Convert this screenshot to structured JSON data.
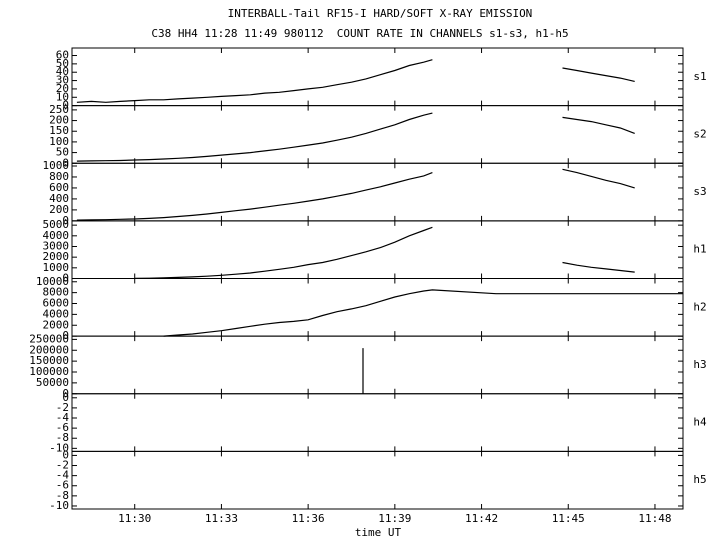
{
  "chart_data": [
    {
      "type": "line",
      "title": "INTERBALL-Tail RF15-I HARD/SOFT X-RAY EMISSION",
      "subtitle": "C38 HH4 11:28 11:49 980112  COUNT RATE IN CHANNELS s1-s3, h1-h5",
      "label": "s1",
      "color": "#000000",
      "x": [
        28,
        28.5,
        29,
        29.5,
        30,
        30.5,
        31,
        31.5,
        32,
        32.5,
        33,
        33.5,
        34,
        34.5,
        35,
        35.5,
        36,
        36.5,
        37,
        37.5,
        38,
        38.5,
        39,
        39.5,
        40,
        40.3,
        42.5,
        44.8,
        45.3,
        45.8,
        46.3,
        46.8,
        47.3
      ],
      "values": [
        4,
        5,
        4,
        5,
        6,
        7,
        7,
        8,
        9,
        10,
        11,
        12,
        13,
        15,
        16,
        18,
        20,
        22,
        25,
        28,
        32,
        37,
        42,
        48,
        52,
        55,
        null,
        45,
        42,
        39,
        36,
        33,
        29
      ],
      "xlim": [
        27.83,
        48.97
      ],
      "ylim": [
        0,
        69
      ],
      "yticks": [
        0,
        10,
        20,
        30,
        40,
        50,
        60
      ]
    },
    {
      "type": "line",
      "label": "s2",
      "color": "#000000",
      "x": [
        28,
        28.5,
        29,
        29.5,
        30,
        30.5,
        31,
        31.5,
        32,
        32.5,
        33,
        33.5,
        34,
        34.5,
        35,
        35.5,
        36,
        36.5,
        37,
        37.5,
        38,
        38.5,
        39,
        39.5,
        40,
        40.3,
        42.5,
        44.8,
        45.3,
        45.8,
        46.3,
        46.8,
        47.3
      ],
      "values": [
        10,
        11,
        12,
        13,
        15,
        17,
        20,
        23,
        27,
        32,
        38,
        44,
        50,
        58,
        66,
        75,
        85,
        95,
        108,
        122,
        140,
        160,
        180,
        205,
        225,
        235,
        null,
        215,
        205,
        195,
        180,
        165,
        140
      ],
      "xlim": [
        27.83,
        48.97
      ],
      "ylim": [
        0,
        270
      ],
      "yticks": [
        0,
        50,
        100,
        150,
        200,
        250
      ]
    },
    {
      "type": "line",
      "label": "s3",
      "color": "#000000",
      "x": [
        28,
        28.5,
        29,
        29.5,
        30,
        30.5,
        31,
        31.5,
        32,
        32.5,
        33,
        33.5,
        34,
        34.5,
        35,
        35.5,
        36,
        36.5,
        37,
        37.5,
        38,
        38.5,
        39,
        39.5,
        40,
        40.3,
        42.5,
        44.8,
        45.3,
        45.8,
        46.3,
        46.8,
        47.3
      ],
      "values": [
        15,
        18,
        22,
        28,
        35,
        45,
        60,
        80,
        100,
        125,
        155,
        185,
        215,
        250,
        285,
        320,
        360,
        400,
        450,
        500,
        560,
        620,
        690,
        760,
        820,
        880,
        null,
        940,
        880,
        810,
        740,
        680,
        600
      ],
      "xlim": [
        27.83,
        48.97
      ],
      "ylim": [
        0,
        1050
      ],
      "yticks": [
        0,
        200,
        400,
        600,
        800,
        1000
      ]
    },
    {
      "type": "line",
      "label": "h1",
      "color": "#000000",
      "x": [
        28,
        28.5,
        29,
        29.5,
        30,
        30.5,
        31,
        31.5,
        32,
        32.5,
        33,
        33.5,
        34,
        34.5,
        35,
        35.5,
        36,
        36.5,
        37,
        37.5,
        38,
        38.5,
        39,
        39.5,
        40,
        40.3,
        42.5,
        44.8,
        45.3,
        45.8,
        46.3,
        46.8,
        47.3
      ],
      "values": [
        null,
        null,
        null,
        null,
        10,
        30,
        60,
        100,
        150,
        220,
        300,
        400,
        520,
        680,
        860,
        1050,
        1300,
        1500,
        1800,
        2150,
        2500,
        2900,
        3400,
        4000,
        4500,
        4800,
        null,
        1500,
        1250,
        1050,
        900,
        750,
        600
      ],
      "xlim": [
        27.83,
        48.97
      ],
      "ylim": [
        0,
        5400
      ],
      "yticks": [
        0,
        1000,
        2000,
        3000,
        4000,
        5000
      ]
    },
    {
      "type": "line",
      "label": "h2",
      "color": "#000000",
      "x": [
        28,
        28.5,
        29,
        29.5,
        30,
        30.5,
        31,
        31.5,
        32,
        32.5,
        33,
        33.5,
        34,
        34.5,
        35,
        35.5,
        36,
        36.5,
        37,
        37.5,
        38,
        38.5,
        39,
        39.5,
        40,
        40.3,
        42.5,
        44.8,
        45.3,
        45.8,
        46.3,
        46.8,
        47.3,
        48.97
      ],
      "values": [
        null,
        null,
        null,
        null,
        null,
        null,
        0,
        200,
        400,
        700,
        1000,
        1400,
        1800,
        2200,
        2500,
        2700,
        3000,
        3800,
        4500,
        5000,
        5600,
        6400,
        7200,
        7800,
        8300,
        8500,
        7800,
        7800,
        7800,
        7800,
        7800,
        7800,
        7800,
        7800
      ],
      "xlim": [
        27.83,
        48.97
      ],
      "ylim": [
        0,
        10600
      ],
      "yticks": [
        0,
        2000,
        4000,
        6000,
        8000,
        10000
      ]
    },
    {
      "type": "line",
      "label": "h3",
      "color": "#000000",
      "x": [
        37.9,
        37.9,
        37.9
      ],
      "values": [
        0,
        210000,
        0
      ],
      "xlim": [
        27.83,
        48.97
      ],
      "ylim": [
        0,
        265000
      ],
      "yticks": [
        0,
        50000,
        100000,
        150000,
        200000,
        250000
      ]
    },
    {
      "type": "line",
      "label": "h4",
      "xlim": [
        27.83,
        48.97
      ],
      "ylim": [
        -10.6,
        0.8
      ],
      "yticks": [
        -10,
        -8,
        -6,
        -4,
        -2,
        0
      ]
    },
    {
      "type": "line",
      "label": "h5",
      "xlabel": "time UT",
      "xlim": [
        27.83,
        48.97
      ],
      "ylim": [
        -10.6,
        0.8
      ],
      "yticks": [
        -10,
        -8,
        -6,
        -4,
        -2,
        0
      ],
      "xticks": [
        {
          "value": 30,
          "label": "11:30"
        },
        {
          "value": 33,
          "label": "11:33"
        },
        {
          "value": 36,
          "label": "11:36"
        },
        {
          "value": 39,
          "label": "11:39"
        },
        {
          "value": 42,
          "label": "11:42"
        },
        {
          "value": 45,
          "label": "11:45"
        },
        {
          "value": 48,
          "label": "11:48"
        }
      ]
    }
  ]
}
